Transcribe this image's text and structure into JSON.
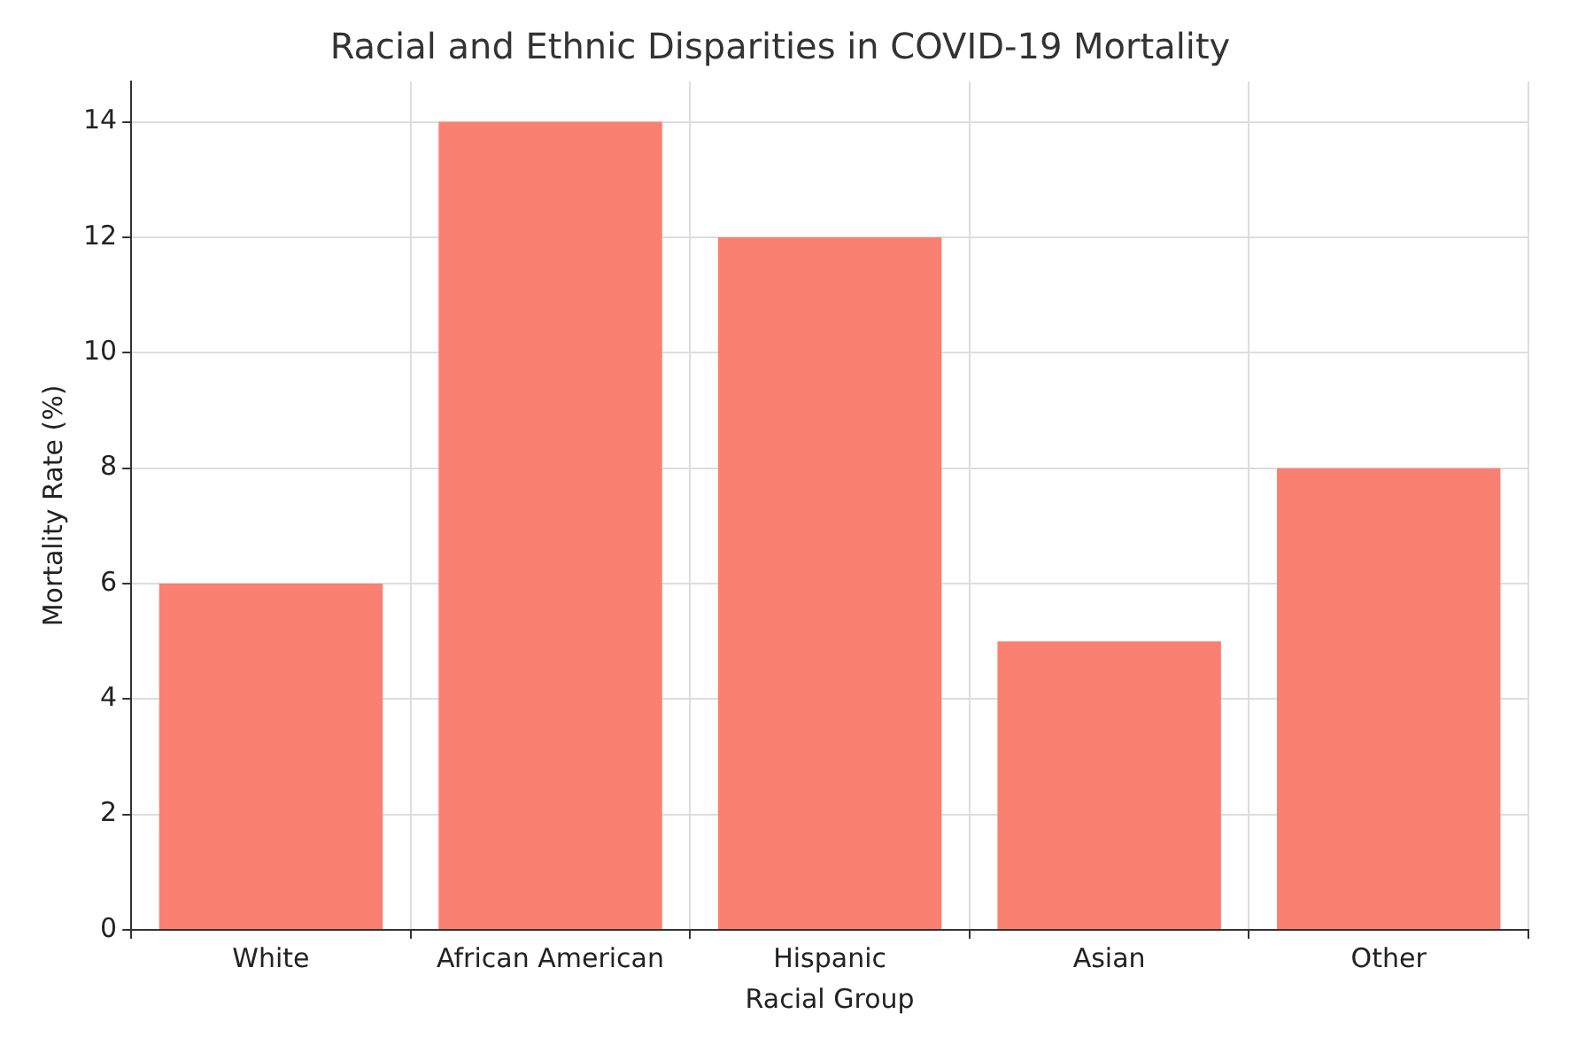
{
  "chart_data": {
    "type": "bar",
    "title": "Racial and Ethnic Disparities in COVID-19 Mortality",
    "xlabel": "Racial Group",
    "ylabel": "Mortality Rate (%)",
    "categories": [
      "White",
      "African American",
      "Hispanic",
      "Asian",
      "Other"
    ],
    "values": [
      6,
      14,
      12,
      5,
      8
    ],
    "color": "#fa8072",
    "ylim": [
      0,
      14.7
    ],
    "yticks": [
      0,
      2,
      4,
      6,
      8,
      10,
      12,
      14
    ],
    "grid": true
  }
}
